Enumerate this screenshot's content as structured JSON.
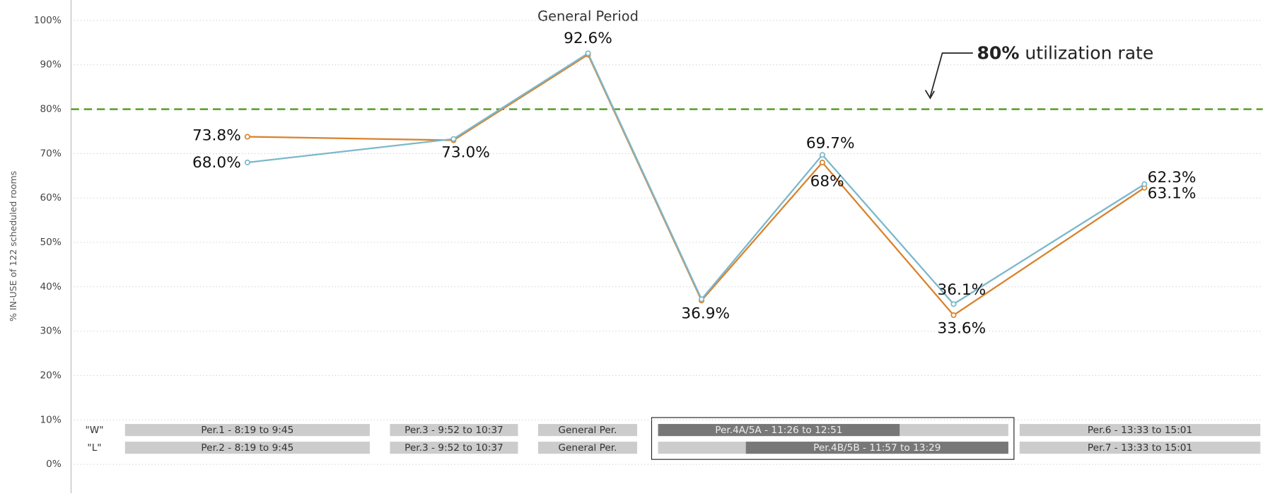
{
  "chart_data": {
    "type": "line",
    "y_label": "% IN-USE of 122 scheduled rooms",
    "categories": [
      null,
      null,
      null,
      null,
      null,
      null,
      null
    ],
    "series": [
      {
        "color": "#d9822b",
        "values": [
          73.8,
          73.0,
          92.3,
          36.9,
          68,
          33.6,
          62.3
        ],
        "value_labels": [
          "73.8%",
          "73.0%",
          null,
          "36.9%",
          "68%",
          "33.6%",
          "62.3%"
        ]
      },
      {
        "color": "#7ab8cc",
        "values": [
          68.0,
          73.3,
          92.6,
          37.2,
          69.7,
          36.1,
          63.1
        ],
        "value_labels": [
          "68.0%",
          null,
          "92.6%",
          null,
          "69.7%",
          "36.1%",
          "63.1%"
        ]
      }
    ],
    "ylim": [
      -6.5,
      104.6
    ],
    "yticks": [
      {
        "value": 0,
        "label": "0%"
      },
      {
        "value": 10,
        "label": "10%"
      },
      {
        "value": 20,
        "label": "20%"
      },
      {
        "value": 30,
        "label": "30%"
      },
      {
        "value": 40,
        "label": "40%"
      },
      {
        "value": 50,
        "label": "50%"
      },
      {
        "value": 60,
        "label": "60%"
      },
      {
        "value": 70,
        "label": "70%"
      },
      {
        "value": 80,
        "label": "80%"
      },
      {
        "value": 90,
        "label": "90%"
      },
      {
        "value": 100,
        "label": "100%"
      }
    ],
    "grid": true,
    "annotation": "General Period",
    "reference_line": {
      "value": 80,
      "color": "#4a9a1e",
      "label_bold": "80%",
      "label": "utilization rate"
    },
    "schedule": [
      {
        "row": "\"W\"",
        "items": [
          "Per.1 - 8:19 to 9:45",
          "Per.3 - 9:52 to 10:37",
          "General Per.",
          "Per.4A/5A - 11:26 to 12:51",
          "Per.6 - 13:33 to 15:01"
        ]
      },
      {
        "row": "\"L\"",
        "items": [
          "Per.2 - 8:19 to 9:45",
          "Per.3 - 9:52 to 10:37",
          "General Per.",
          "Per.4B/5B - 11:57 to 13:29",
          "Per.7 - 13:33 to 15:01"
        ]
      }
    ]
  }
}
